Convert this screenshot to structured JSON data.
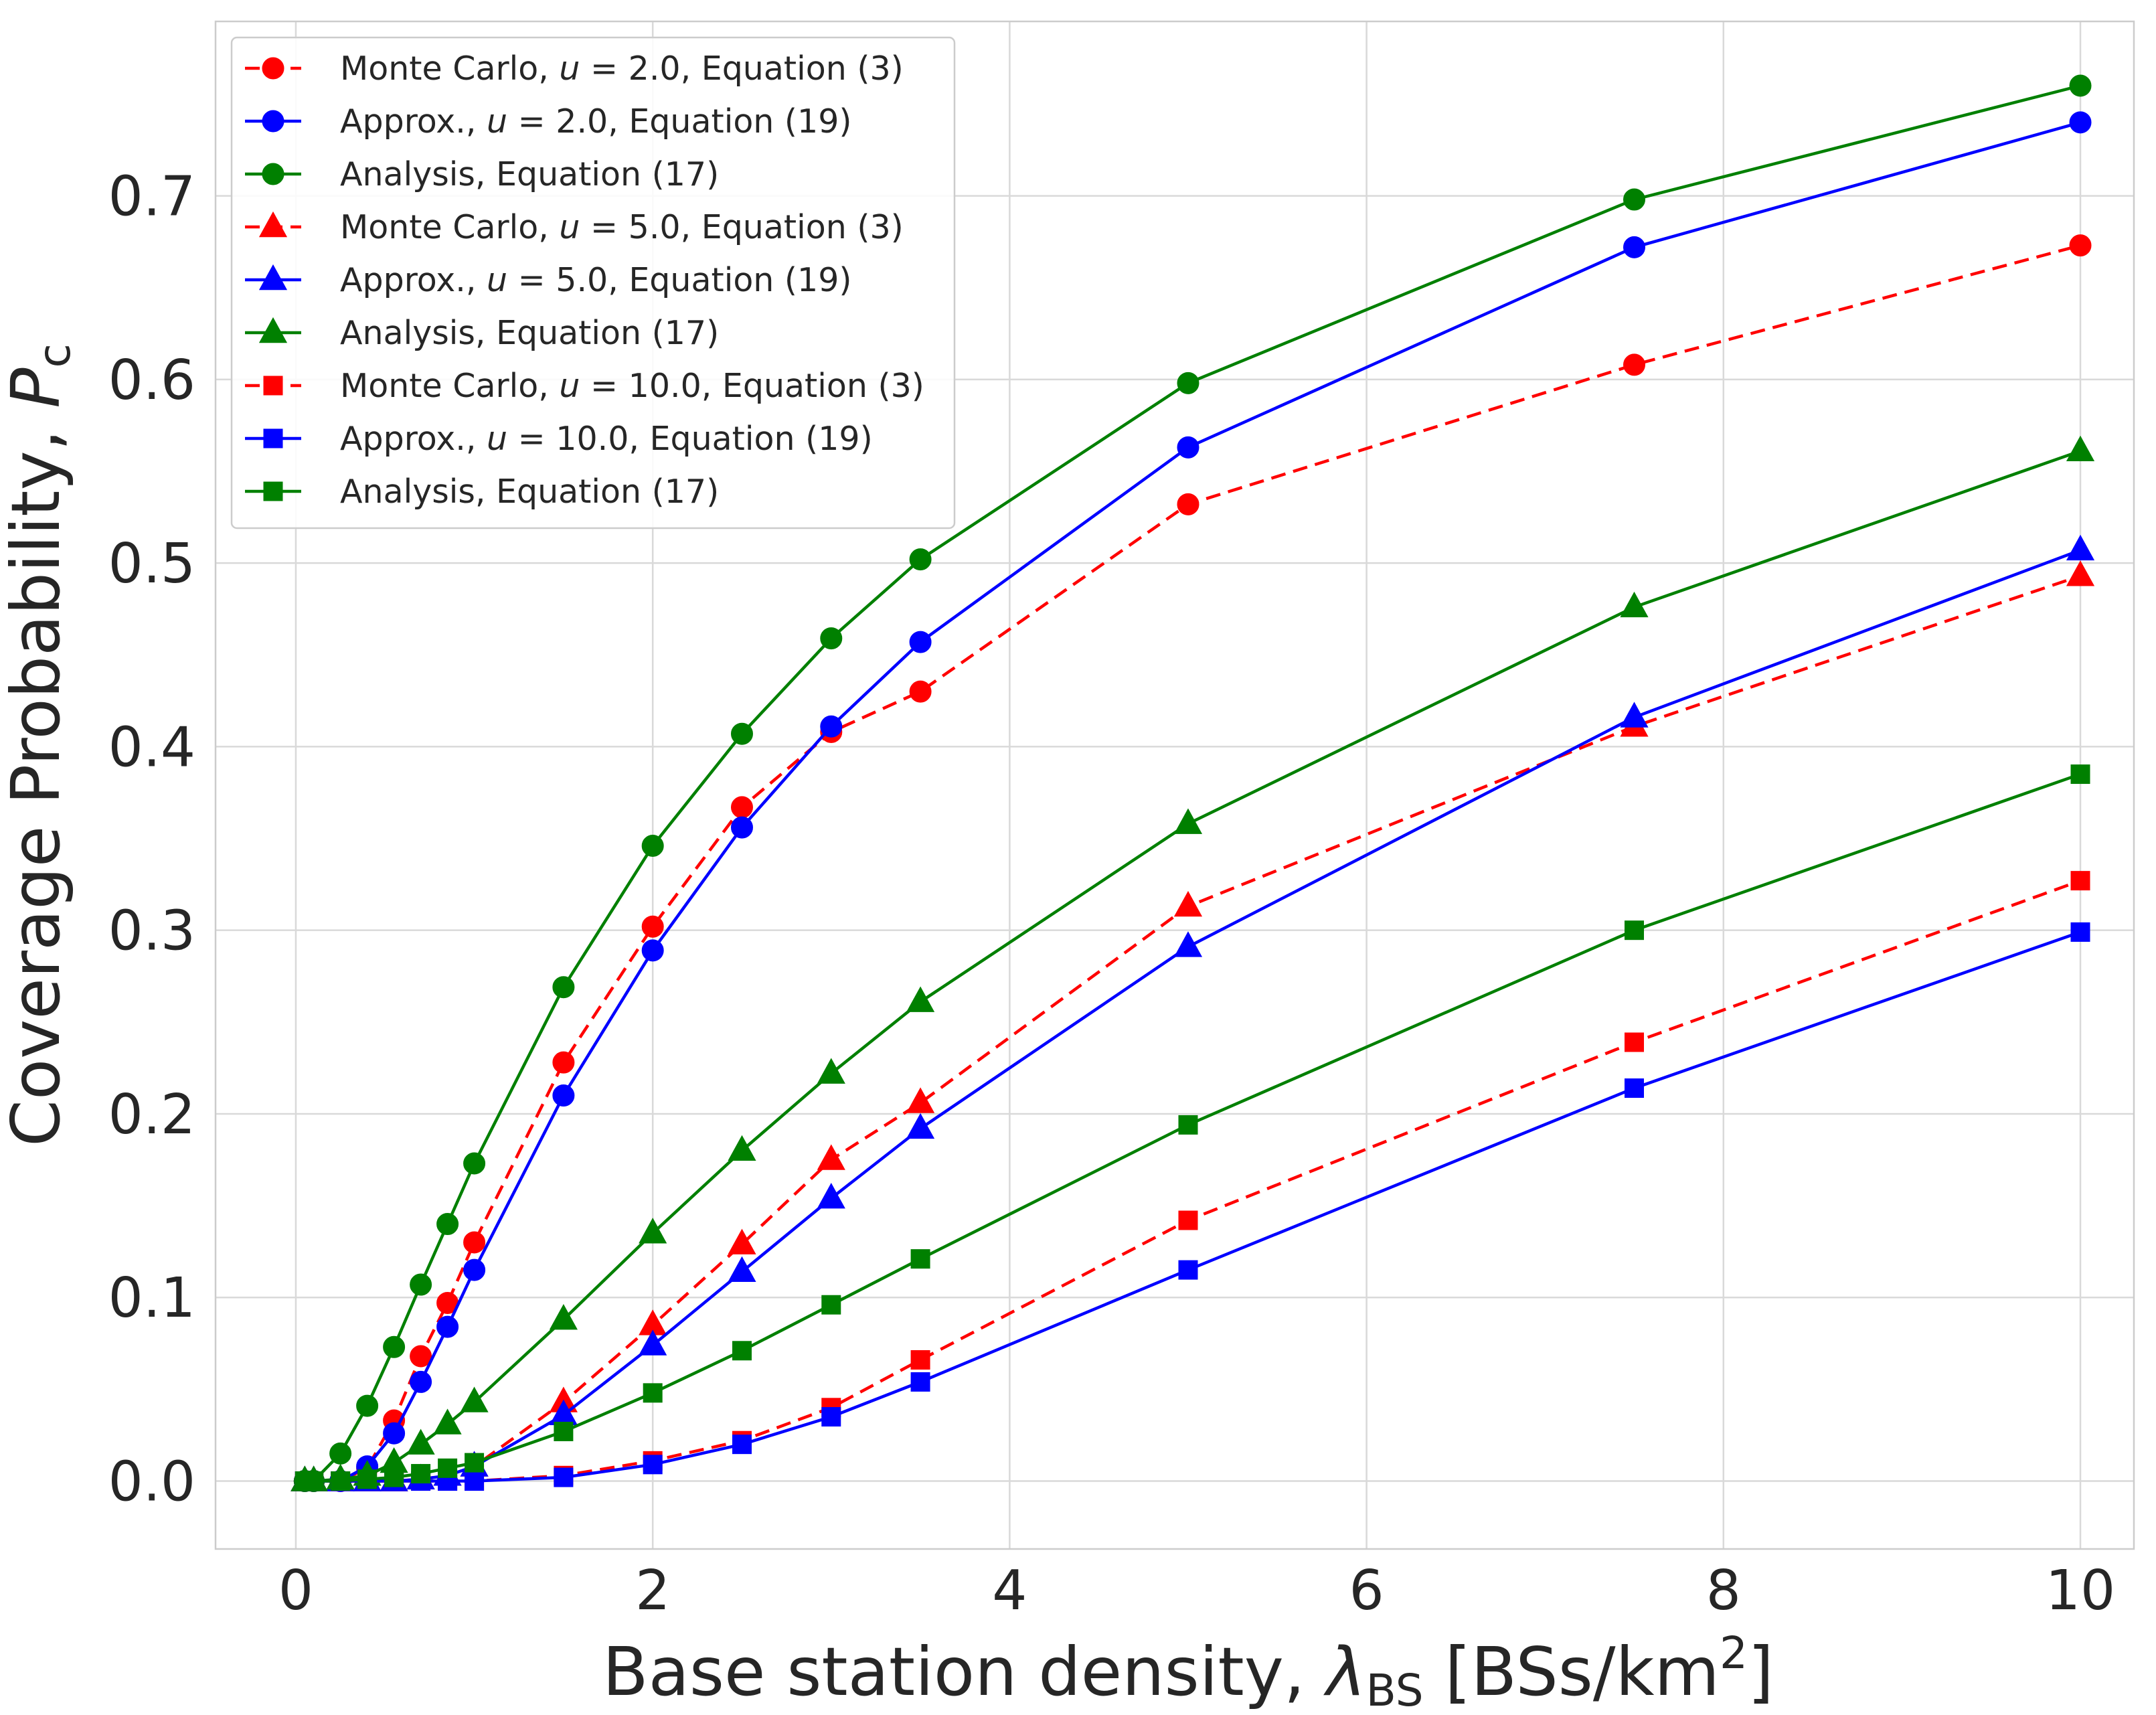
{
  "chart_data": {
    "type": "line",
    "title": "",
    "xlabel_text": "Base station density, ",
    "xlabel_symbol": "λ",
    "xlabel_subscript": "BS",
    "xlabel_units_pre": " [BSs/km",
    "xlabel_units_sup": "2",
    "xlabel_units_post": "]",
    "ylabel_text": "Coverage Probability, ",
    "ylabel_symbol": "P",
    "ylabel_subscript": "c",
    "xlim": [
      -0.45,
      10.3
    ],
    "ylim": [
      -0.037,
      0.795
    ],
    "xticks": [
      0,
      2,
      4,
      6,
      8,
      10
    ],
    "xtick_labels": [
      "0",
      "2",
      "4",
      "6",
      "8",
      "10"
    ],
    "yticks": [
      0.0,
      0.1,
      0.2,
      0.3,
      0.4,
      0.5,
      0.6,
      0.7
    ],
    "ytick_labels": [
      "0.0",
      "0.1",
      "0.2",
      "0.3",
      "0.4",
      "0.5",
      "0.6",
      "0.7"
    ],
    "grid": true,
    "legend_position": "top-left",
    "colors": {
      "red": "#ff0000",
      "blue": "#0000ff",
      "green": "#008000",
      "grid": "#d9d9d9",
      "frame": "#cccccc",
      "text": "#262626"
    },
    "series": [
      {
        "name": "mc_u2",
        "legend_pre": "Monte Carlo, ",
        "legend_var": "u",
        "legend_post": " = 2.0, Equation (3)",
        "color": "red",
        "marker": "circle",
        "dashed": true,
        "x": [
          0.05,
          0.1,
          0.25,
          0.4,
          0.55,
          0.7,
          0.85,
          1.0,
          1.5,
          2.0,
          2.5,
          3.0,
          3.5,
          5.0,
          7.5,
          10.0
        ],
        "y": [
          0.0,
          0.0,
          0.0,
          0.007,
          0.033,
          0.068,
          0.097,
          0.13,
          0.228,
          0.302,
          0.367,
          0.408,
          0.43,
          0.532,
          0.608,
          0.673
        ]
      },
      {
        "name": "approx_u2",
        "legend_pre": "Approx., ",
        "legend_var": "u",
        "legend_post": " = 2.0, Equation (19)",
        "color": "blue",
        "marker": "circle",
        "dashed": false,
        "x": [
          0.05,
          0.1,
          0.25,
          0.4,
          0.55,
          0.7,
          0.85,
          1.0,
          1.5,
          2.0,
          2.5,
          3.0,
          3.5,
          5.0,
          7.5,
          10.0
        ],
        "y": [
          0.0,
          0.0,
          0.0,
          0.008,
          0.026,
          0.054,
          0.084,
          0.115,
          0.21,
          0.289,
          0.356,
          0.411,
          0.457,
          0.563,
          0.672,
          0.74
        ]
      },
      {
        "name": "analysis_u2",
        "legend_pre": "Analysis, Equation (17)",
        "legend_var": "",
        "legend_post": "",
        "color": "green",
        "marker": "circle",
        "dashed": false,
        "x": [
          0.05,
          0.1,
          0.25,
          0.4,
          0.55,
          0.7,
          0.85,
          1.0,
          1.5,
          2.0,
          2.5,
          3.0,
          3.5,
          5.0,
          7.5,
          10.0
        ],
        "y": [
          0.0,
          0.0,
          0.015,
          0.041,
          0.073,
          0.107,
          0.14,
          0.173,
          0.269,
          0.346,
          0.407,
          0.459,
          0.502,
          0.598,
          0.698,
          0.76
        ]
      },
      {
        "name": "mc_u5",
        "legend_pre": "Monte Carlo, ",
        "legend_var": "u",
        "legend_post": " = 5.0, Equation (3)",
        "color": "red",
        "marker": "triangle",
        "dashed": true,
        "x": [
          0.05,
          0.1,
          0.25,
          0.4,
          0.55,
          0.7,
          0.85,
          1.0,
          1.5,
          2.0,
          2.5,
          3.0,
          3.5,
          5.0,
          7.5,
          10.0
        ],
        "y": [
          0.0,
          0.0,
          0.0,
          0.0,
          0.0,
          0.001,
          0.003,
          0.008,
          0.043,
          0.085,
          0.129,
          0.175,
          0.206,
          0.313,
          0.411,
          0.493
        ]
      },
      {
        "name": "approx_u5",
        "legend_pre": "Approx., ",
        "legend_var": "u",
        "legend_post": " = 5.0, Equation (19)",
        "color": "blue",
        "marker": "triangle",
        "dashed": false,
        "x": [
          0.05,
          0.1,
          0.25,
          0.4,
          0.55,
          0.7,
          0.85,
          1.0,
          1.5,
          2.0,
          2.5,
          3.0,
          3.5,
          5.0,
          7.5,
          10.0
        ],
        "y": [
          0.0,
          0.0,
          0.0,
          0.0,
          0.0,
          0.001,
          0.003,
          0.008,
          0.036,
          0.074,
          0.114,
          0.154,
          0.192,
          0.291,
          0.416,
          0.507
        ]
      },
      {
        "name": "analysis_u5",
        "legend_pre": "Analysis, Equation (17)",
        "legend_var": "",
        "legend_post": "",
        "color": "green",
        "marker": "triangle",
        "dashed": false,
        "x": [
          0.05,
          0.1,
          0.25,
          0.4,
          0.55,
          0.7,
          0.85,
          1.0,
          1.5,
          2.0,
          2.5,
          3.0,
          3.5,
          5.0,
          7.5,
          10.0
        ],
        "y": [
          0.0,
          0.0,
          0.001,
          0.003,
          0.01,
          0.02,
          0.031,
          0.043,
          0.088,
          0.135,
          0.18,
          0.222,
          0.261,
          0.358,
          0.476,
          0.561
        ]
      },
      {
        "name": "mc_u10",
        "legend_pre": "Monte Carlo, ",
        "legend_var": "u",
        "legend_post": " = 10.0, Equation (3)",
        "color": "red",
        "marker": "square",
        "dashed": true,
        "x": [
          0.05,
          0.1,
          0.25,
          0.4,
          0.55,
          0.7,
          0.85,
          1.0,
          1.5,
          2.0,
          2.5,
          3.0,
          3.5,
          5.0,
          7.5,
          10.0
        ],
        "y": [
          0.0,
          0.0,
          0.0,
          0.0,
          0.0,
          0.0,
          0.0,
          0.0,
          0.003,
          0.011,
          0.022,
          0.04,
          0.066,
          0.142,
          0.239,
          0.327
        ]
      },
      {
        "name": "approx_u10",
        "legend_pre": "Approx., ",
        "legend_var": "u",
        "legend_post": " = 10.0, Equation (19)",
        "color": "blue",
        "marker": "square",
        "dashed": false,
        "x": [
          0.05,
          0.1,
          0.25,
          0.4,
          0.55,
          0.7,
          0.85,
          1.0,
          1.5,
          2.0,
          2.5,
          3.0,
          3.5,
          5.0,
          7.5,
          10.0
        ],
        "y": [
          0.0,
          0.0,
          0.0,
          0.0,
          0.0,
          0.0,
          0.0,
          0.0,
          0.002,
          0.009,
          0.02,
          0.035,
          0.054,
          0.115,
          0.214,
          0.299
        ]
      },
      {
        "name": "analysis_u10",
        "legend_pre": "Analysis, Equation (17)",
        "legend_var": "",
        "legend_post": "",
        "color": "green",
        "marker": "square",
        "dashed": false,
        "x": [
          0.05,
          0.1,
          0.25,
          0.4,
          0.55,
          0.7,
          0.85,
          1.0,
          1.5,
          2.0,
          2.5,
          3.0,
          3.5,
          5.0,
          7.5,
          10.0
        ],
        "y": [
          0.0,
          0.0,
          0.0,
          0.001,
          0.002,
          0.004,
          0.007,
          0.01,
          0.027,
          0.048,
          0.071,
          0.096,
          0.121,
          0.194,
          0.3,
          0.385
        ]
      }
    ]
  }
}
